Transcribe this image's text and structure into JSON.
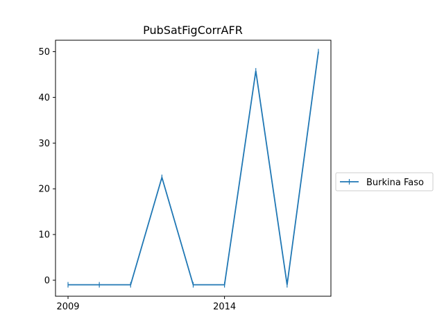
{
  "chart_data": {
    "type": "line",
    "title": "PubSatFigCorrAFR",
    "xlabel": "",
    "ylabel": "",
    "x": [
      2009,
      2010,
      2011,
      2012,
      2013,
      2014,
      2015,
      2016,
      2017
    ],
    "series": [
      {
        "name": "Burkina Faso",
        "values": [
          -1,
          -1,
          -1,
          22.5,
          -1,
          -1,
          45.8,
          -1,
          50
        ],
        "color": "#1f77b4",
        "marker": "vline"
      }
    ],
    "xticks": [
      2009,
      2014
    ],
    "yticks": [
      0,
      10,
      20,
      30,
      40,
      50
    ],
    "xlim": [
      2008.6,
      2017.4
    ],
    "ylim": [
      -3.5,
      52.5
    ],
    "grid": false,
    "legend_position": "outside-right"
  }
}
